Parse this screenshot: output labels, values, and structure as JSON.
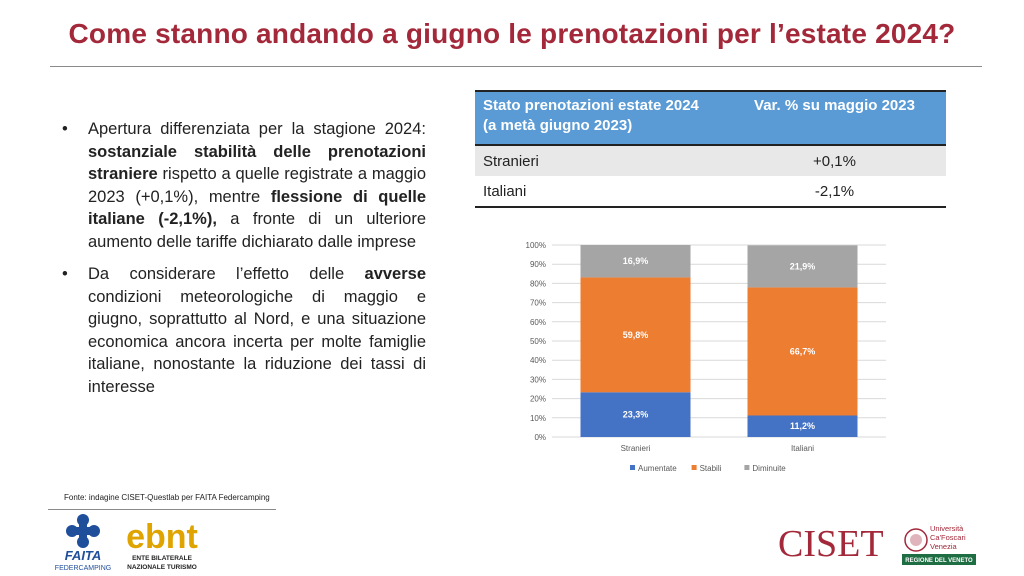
{
  "title": "Come stanno andando a giugno le prenotazioni per l’estate 2024?",
  "bullets": {
    "b1": {
      "p1": "Apertura differenziata per la stagione 2024: ",
      "b1": "sostanziale stabilità delle prenotazioni straniere",
      "p2": " rispetto a quelle registrate a maggio 2023 (+0,1%), mentre ",
      "b2": "flessione di quelle italiane (-2,1%),",
      "p3": " a fronte di un ulteriore aumento delle tariffe dichiarato dalle imprese"
    },
    "b2": {
      "p1": "Da considerare l’effetto delle ",
      "b1": "avverse",
      "p2": " condizioni meteorologiche di maggio e giugno, soprattutto al Nord, e una situazione economica ancora incerta per molte famiglie italiane, nonostante la riduzione dei tassi di interesse"
    }
  },
  "table": {
    "header_left": "Stato prenotazioni estate 2024 (a metà giugno 2023)",
    "header_right": "Var. % su maggio 2023",
    "rows": [
      {
        "label": "Stranieri",
        "value": "+0,1%"
      },
      {
        "label": "Italiani",
        "value": "-2,1%"
      }
    ]
  },
  "chart_data": {
    "type": "bar",
    "stacked": true,
    "categories": [
      "Stranieri",
      "Italiani"
    ],
    "series": [
      {
        "name": "Aumentate",
        "values": [
          23.3,
          11.2
        ],
        "labels": [
          "23,3%",
          "11,2%"
        ],
        "color": "#4472c4"
      },
      {
        "name": "Stabili",
        "values": [
          59.8,
          66.7
        ],
        "labels": [
          "59,8%",
          "66,7%"
        ],
        "color": "#ed7d31"
      },
      {
        "name": "Diminuite",
        "values": [
          16.9,
          21.9
        ],
        "labels": [
          "16,9%",
          "21,9%"
        ],
        "color": "#a5a5a5"
      }
    ],
    "ylim": [
      0,
      100
    ],
    "yticks": [
      "0%",
      "10%",
      "20%",
      "30%",
      "40%",
      "50%",
      "60%",
      "70%",
      "80%",
      "90%",
      "100%"
    ],
    "grid": true,
    "legend": "bottom"
  },
  "source": "Fonte: indagine CISET-Questlab per FAITA Federcamping",
  "logos": {
    "faita": {
      "name": "FAITA",
      "sub": "FEDERCAMPING"
    },
    "ebnt": {
      "name": "ebnt",
      "sub1": "ENTE BILATERALE",
      "sub2": "NAZIONALE TURISMO"
    },
    "ciset": {
      "name": "CISET",
      "uni1": "Università",
      "uni2": "Ca'Foscari",
      "uni3": "Venezia",
      "region": "REGIONE DEL VENETO"
    }
  },
  "colors": {
    "title": "#a3283a",
    "table_header": "#5b9bd5",
    "ciset": "#a3283a"
  }
}
